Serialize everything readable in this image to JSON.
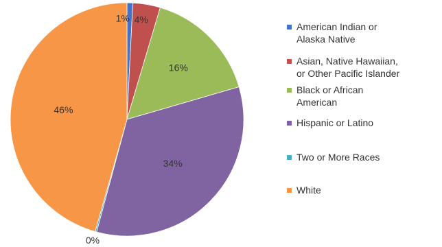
{
  "chart_data": {
    "type": "pie",
    "title": "",
    "legend_position": "right",
    "slices": [
      {
        "name": "American Indian or Alaska Native",
        "legend_lines": [
          "American Indian or",
          "Alaska Native"
        ],
        "value": 0.8,
        "label": "1%",
        "color": "#4472c4"
      },
      {
        "name": "Asian, Native Hawaiian, or Other Pacific Islander",
        "legend_lines": [
          "Asian, Native Hawaiian,",
          "or Other Pacific Islander"
        ],
        "value": 3.8,
        "label": "4%",
        "color": "#c0504d"
      },
      {
        "name": "Black or African American",
        "legend_lines": [
          "Black or African",
          "American"
        ],
        "value": 15.9,
        "label": "16%",
        "color": "#9bbb59"
      },
      {
        "name": "Hispanic or Latino",
        "legend_lines": [
          "Hispanic or Latino"
        ],
        "value": 33.7,
        "label": "34%",
        "color": "#8064a2"
      },
      {
        "name": "Two or More Races",
        "legend_lines": [
          "Two or More Races"
        ],
        "value": 0.2,
        "label": "0%",
        "color": "#4bacc6"
      },
      {
        "name": "White",
        "legend_lines": [
          "White"
        ],
        "value": 45.6,
        "label": "46%",
        "color": "#f79646"
      }
    ]
  }
}
